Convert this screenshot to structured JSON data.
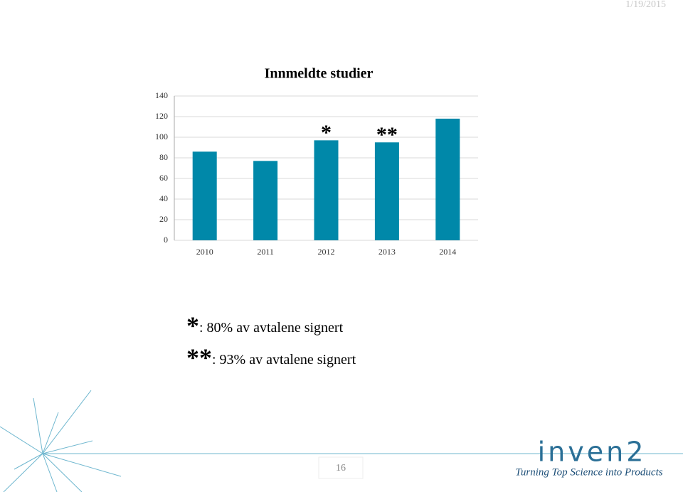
{
  "date": "1/19/2015",
  "chart_data": {
    "type": "bar",
    "title": "Innmeldte studier",
    "categories": [
      "2010",
      "2011",
      "2012",
      "2013",
      "2014"
    ],
    "values": [
      86,
      77,
      97,
      95,
      118
    ],
    "color": "#0088a9",
    "ylim": [
      0,
      140
    ],
    "yticks": [
      0,
      20,
      40,
      60,
      80,
      100,
      120,
      140
    ],
    "grid": true,
    "annotations": [
      {
        "text": "*",
        "category": "2012"
      },
      {
        "text": "**",
        "category": "2013"
      }
    ]
  },
  "notes": [
    {
      "mark": "*",
      "text": ": 80% av avtalene signert"
    },
    {
      "mark": "**",
      "text": ": 93% av avtalene signert"
    }
  ],
  "page_number": "16",
  "logo": {
    "name": "inven2",
    "tagline": "Turning Top Science into Products"
  }
}
